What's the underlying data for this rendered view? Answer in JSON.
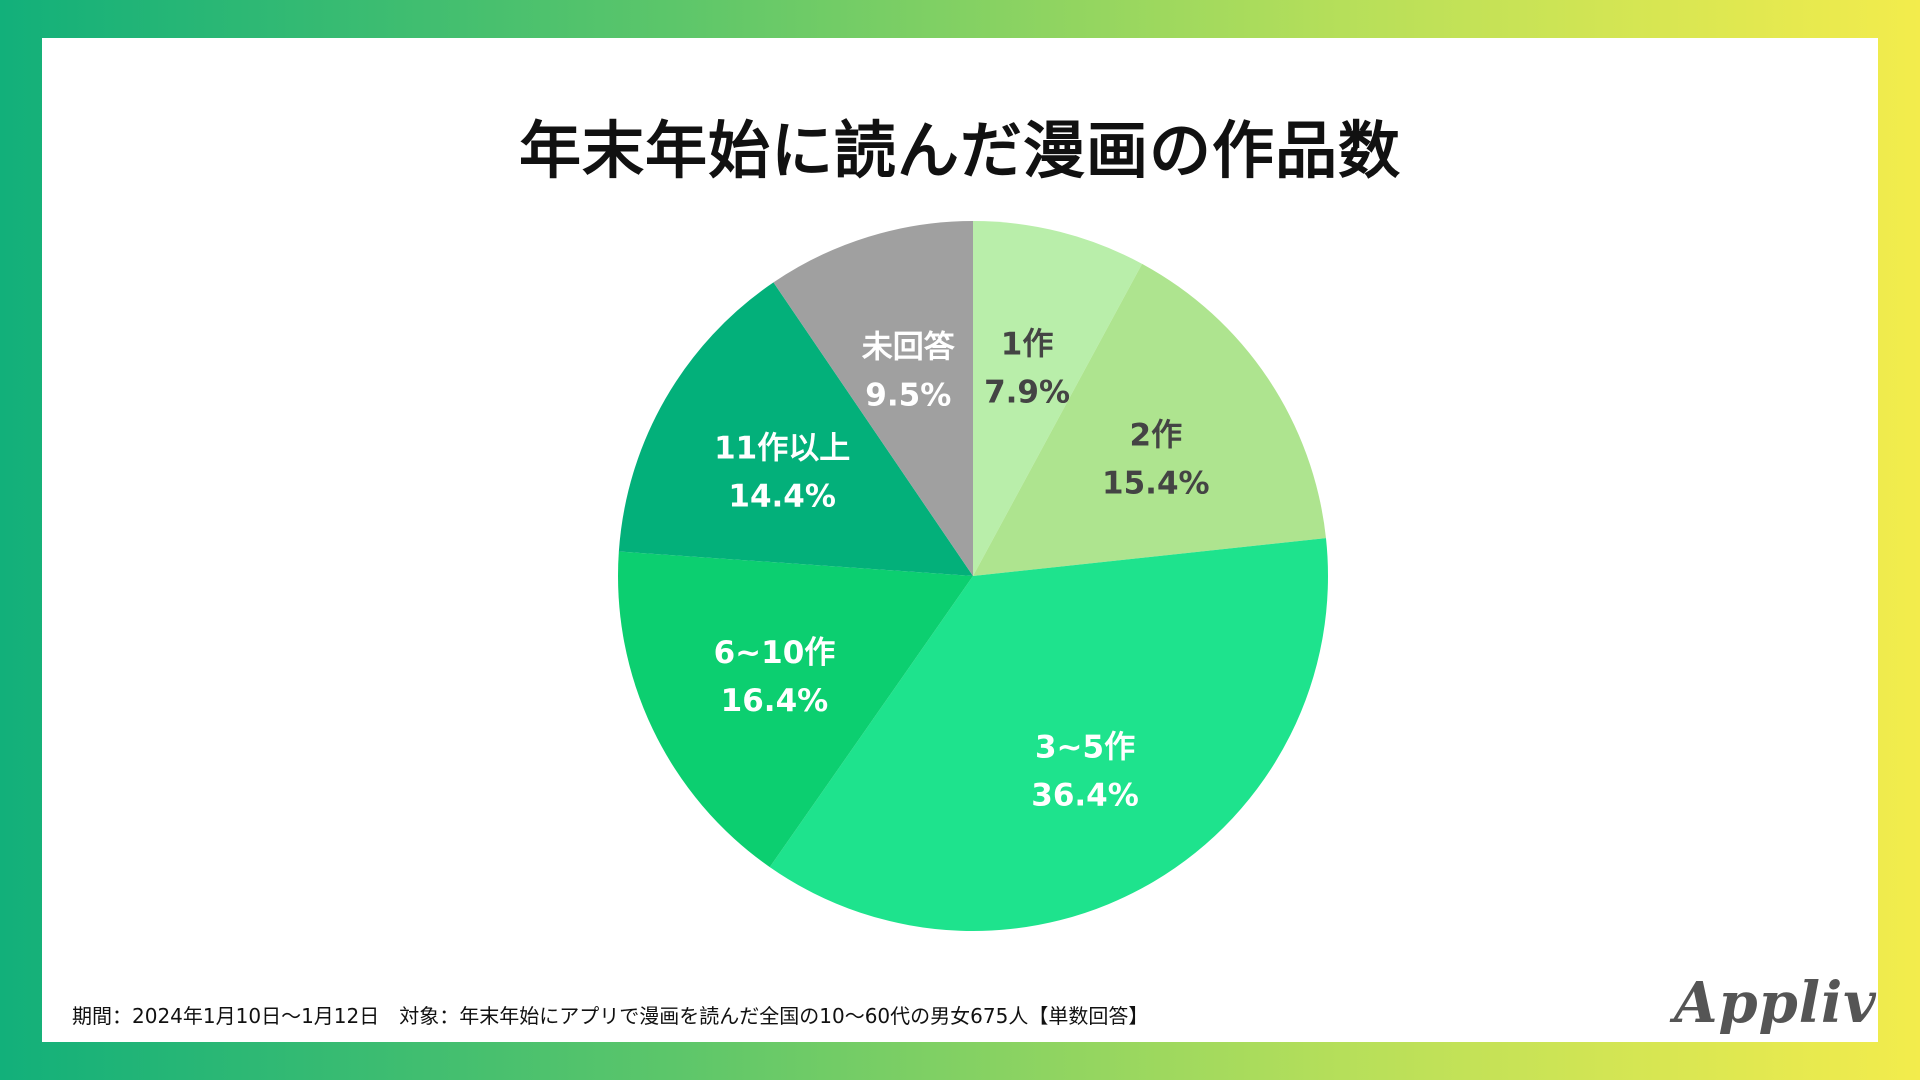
{
  "title": "年末年始に読んだ漫画の作品数",
  "footnote": "期間：2024年1月10日〜1月12日　対象：年末年始にアプリで漫画を読んだ全国の10〜60代の男女675人【単数回答】",
  "logo": "Appliv",
  "chart_data": {
    "type": "pie",
    "title": "年末年始に読んだ漫画の作品数",
    "unit": "%",
    "start": "12 o'clock",
    "direction": "clockwise",
    "slices": [
      {
        "label": "1作",
        "value": 7.9,
        "value_text": "7.9%",
        "color": "#b9eeaa",
        "text_color": "#444444"
      },
      {
        "label": "2作",
        "value": 15.4,
        "value_text": "15.4%",
        "color": "#aee48f",
        "text_color": "#444444"
      },
      {
        "label": "3~5作",
        "value": 36.4,
        "value_text": "36.4%",
        "color": "#1ee38d",
        "text_color": "#ffffff"
      },
      {
        "label": "6~10作",
        "value": 16.4,
        "value_text": "16.4%",
        "color": "#0ccf70",
        "text_color": "#ffffff"
      },
      {
        "label": "11作以上",
        "value": 14.4,
        "value_text": "14.4%",
        "color": "#03b07a",
        "text_color": "#ffffff"
      },
      {
        "label": "未回答",
        "value": 9.5,
        "value_text": "9.5%",
        "color": "#a0a0a0",
        "text_color": "#ffffff"
      }
    ]
  }
}
